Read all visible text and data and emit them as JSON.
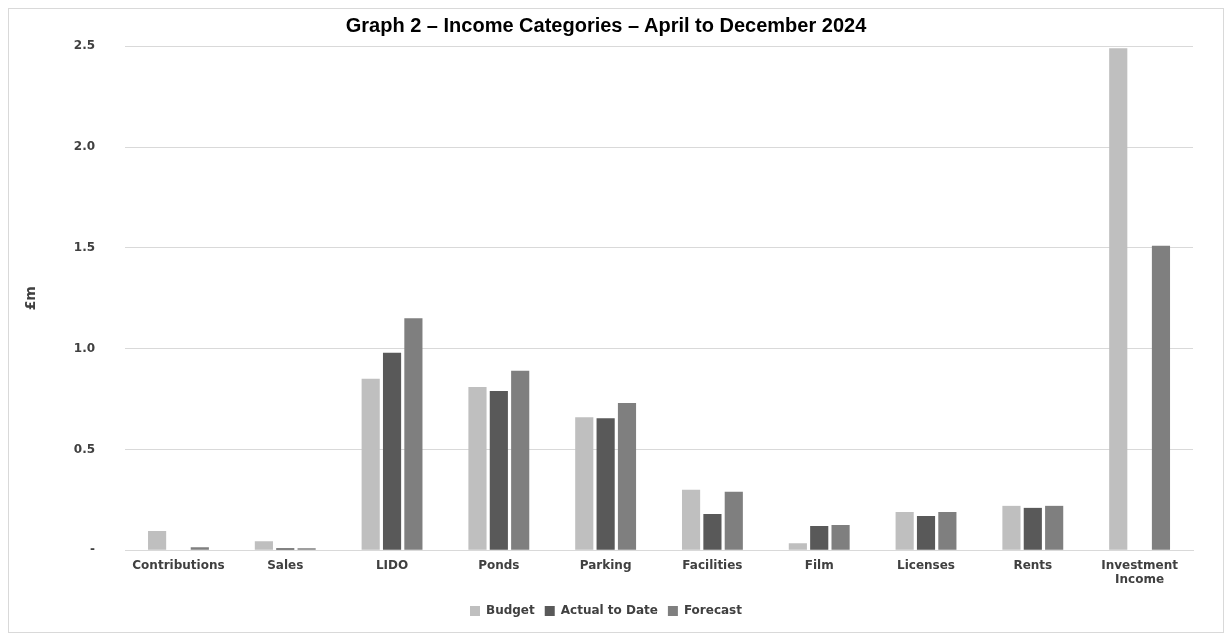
{
  "chart_data": {
    "type": "bar",
    "title": "Graph 2 – Income Categories – April to December 2024",
    "ylabel": "£m",
    "categories": [
      "Contributions",
      "Sales",
      "LIDO",
      "Ponds",
      "Parking",
      "Facilities",
      "Film",
      "Licenses",
      "Rents",
      "Investment Income"
    ],
    "series": [
      {
        "name": "Budget",
        "color": "#bfbfbf",
        "values": [
          0.095,
          0.045,
          0.85,
          0.81,
          0.66,
          0.3,
          0.035,
          0.19,
          0.22,
          2.49
        ]
      },
      {
        "name": "Actual to Date",
        "color": "#595959",
        "values": [
          0,
          0.01,
          0.98,
          0.79,
          0.655,
          0.18,
          0.12,
          0.17,
          0.21,
          0
        ]
      },
      {
        "name": "Forecast",
        "color": "#7f7f7f",
        "values": [
          0.015,
          0.01,
          1.15,
          0.89,
          0.73,
          0.29,
          0.125,
          0.19,
          0.22,
          1.51
        ]
      }
    ],
    "ylim": [
      0,
      2.5
    ],
    "yticks": [
      {
        "value": 0,
        "label": "-"
      },
      {
        "value": 0.5,
        "label": "0.5"
      },
      {
        "value": 1,
        "label": "1.0"
      },
      {
        "value": 1.5,
        "label": "1.5"
      },
      {
        "value": 2,
        "label": "2.0"
      },
      {
        "value": 2.5,
        "label": "2.5"
      }
    ],
    "grid": "y",
    "legend": "bottom"
  }
}
